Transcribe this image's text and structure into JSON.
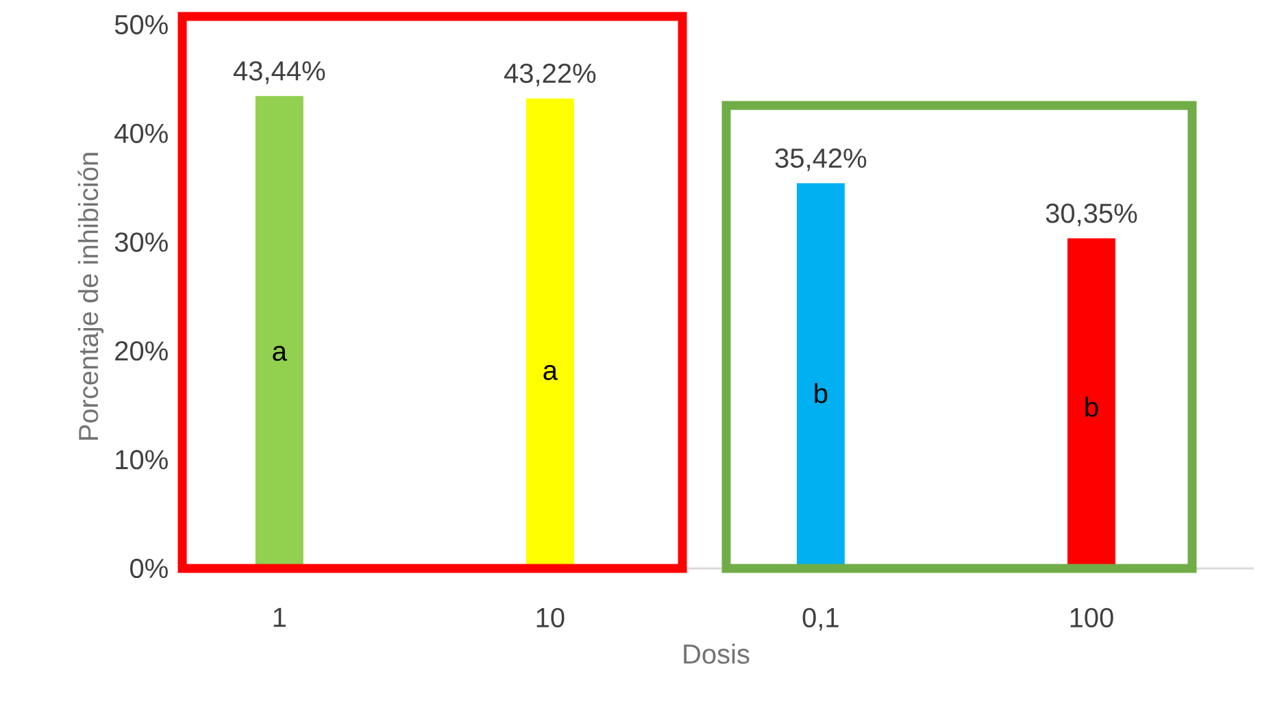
{
  "chart_data": {
    "type": "bar",
    "xlabel": "Dosis",
    "ylabel": "Porcentaje  de inhibición",
    "categories": [
      "1",
      "10",
      "0,1",
      "100"
    ],
    "values": [
      43.44,
      43.22,
      35.42,
      30.35
    ],
    "colors": [
      "#92d050",
      "#ffff00",
      "#00b0f0",
      "#ff0000"
    ],
    "value_labels": [
      "43,44%",
      "43,22%",
      "35,42%",
      "30,35%"
    ],
    "ylim": [
      0,
      50
    ],
    "yticks": [
      {
        "value": 0,
        "label": "0%"
      },
      {
        "value": 10,
        "label": "10%"
      },
      {
        "value": 20,
        "label": "20%"
      },
      {
        "value": 30,
        "label": "30%"
      },
      {
        "value": 40,
        "label": "40%"
      },
      {
        "value": 50,
        "label": "50%"
      }
    ],
    "annotations": [
      "a",
      "a",
      "b",
      "b"
    ],
    "grid": false
  }
}
